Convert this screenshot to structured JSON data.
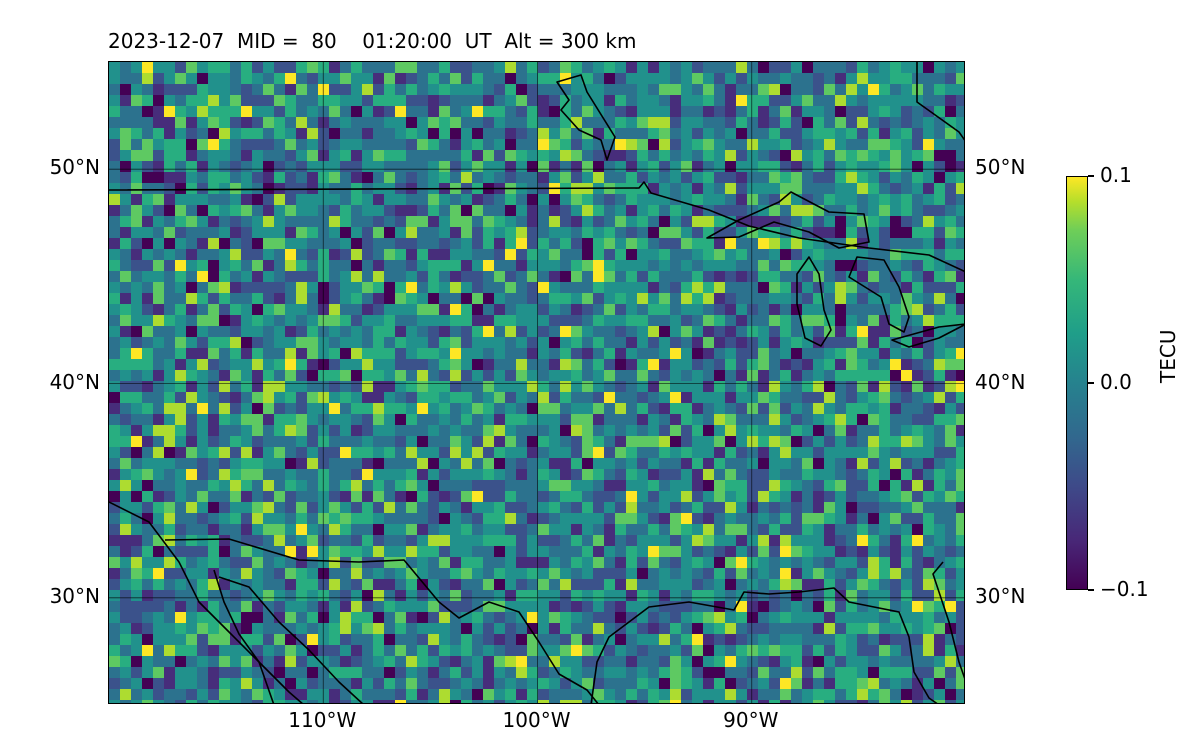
{
  "header": {
    "title": "2023-12-07  MID =  80    01:20:00  UT  Alt = 300 km"
  },
  "map": {
    "extent": {
      "lon_min": -120,
      "lon_max": -80,
      "lat_min": 25,
      "lat_max": 55
    },
    "lat_ticks": [
      {
        "value": 50,
        "label": "50°N"
      },
      {
        "value": 40,
        "label": "40°N"
      },
      {
        "value": 30,
        "label": "30°N"
      }
    ],
    "lon_ticks": [
      {
        "value": -110,
        "label": "110°W"
      },
      {
        "value": -100,
        "label": "100°W"
      },
      {
        "value": -90,
        "label": "90°W"
      }
    ],
    "gridlines": true
  },
  "colorbar": {
    "label": "TECU",
    "colormap": "viridis",
    "min": -0.1,
    "max": 0.1,
    "ticks": [
      {
        "value": 0.1,
        "label": "0.1"
      },
      {
        "value": 0.0,
        "label": "0.0"
      },
      {
        "value": -0.1,
        "label": "−0.1"
      }
    ]
  }
}
